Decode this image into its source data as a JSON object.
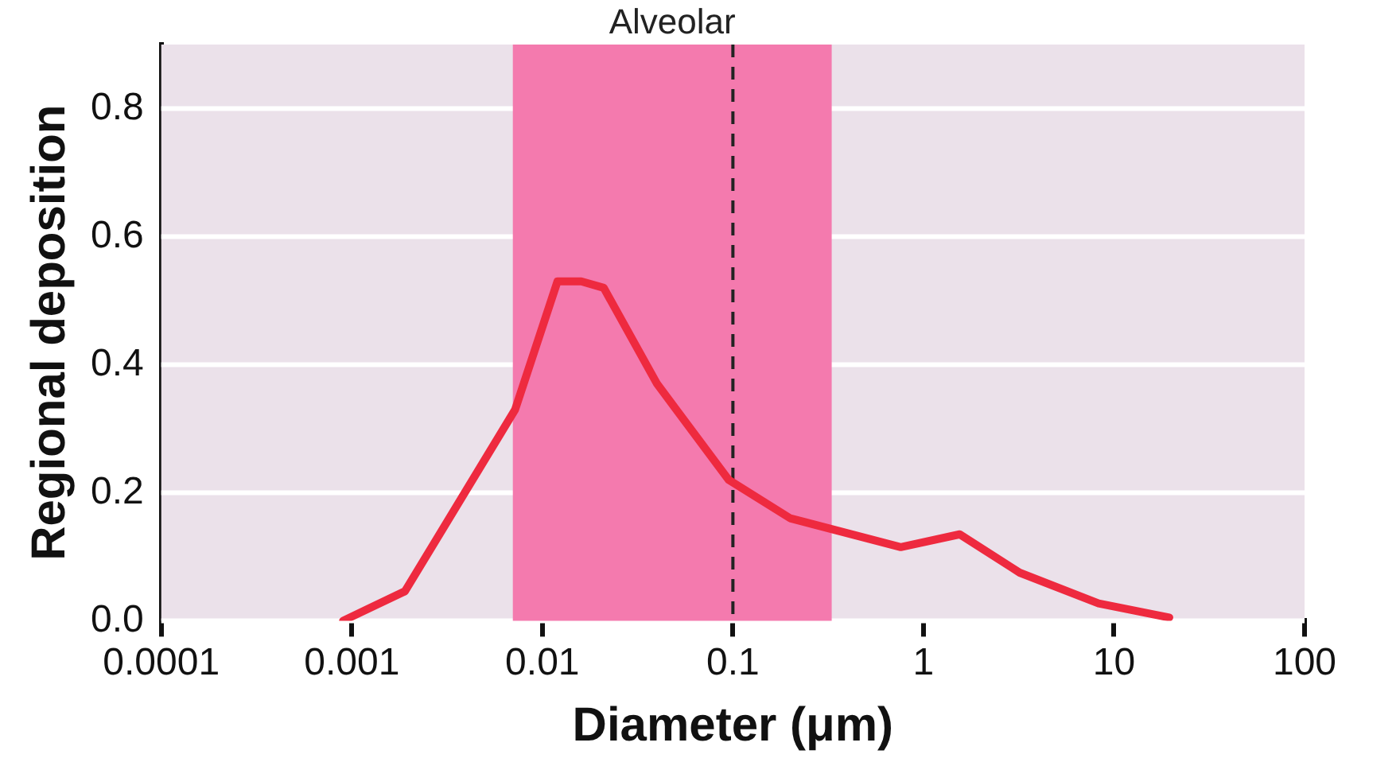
{
  "chart_data": {
    "type": "line",
    "xlabel": "Diameter (μm)",
    "ylabel": "Regional deposition",
    "log": "x",
    "grid": "y",
    "legend": false,
    "marker": "none",
    "line_style": "solid",
    "xlim": [
      0.0001,
      100
    ],
    "xticks": [
      0.0001,
      0.001,
      0.01,
      0.1,
      1,
      10,
      100
    ],
    "ylim": [
      0,
      0.9
    ],
    "yticks": [
      {
        "value": 0,
        "label": "0.0"
      },
      0.2,
      0.4,
      0.6,
      0.8
    ],
    "series": [
      {
        "color": "#ee2a3f",
        "x": [
          0.0009,
          0.0019,
          0.0034,
          0.0072,
          0.012,
          0.016,
          0.021,
          0.04,
          0.095,
          0.2,
          0.76,
          1.55,
          3.2,
          8.3,
          19.5
        ],
        "values": [
          0,
          0.046,
          0.17,
          0.33,
          0.53,
          0.53,
          0.52,
          0.37,
          0.22,
          0.16,
          0.115,
          0.135,
          0.075,
          0.027,
          0.005
        ]
      }
    ],
    "bands": [
      {
        "axis": "x",
        "from": 0.007,
        "to": 0.33,
        "label": "Alveolar",
        "color": "#f47aae"
      }
    ],
    "ref_lines": [
      {
        "axis": "x",
        "value": 0.1,
        "color": "#222222",
        "line_style": "dashed"
      }
    ]
  }
}
